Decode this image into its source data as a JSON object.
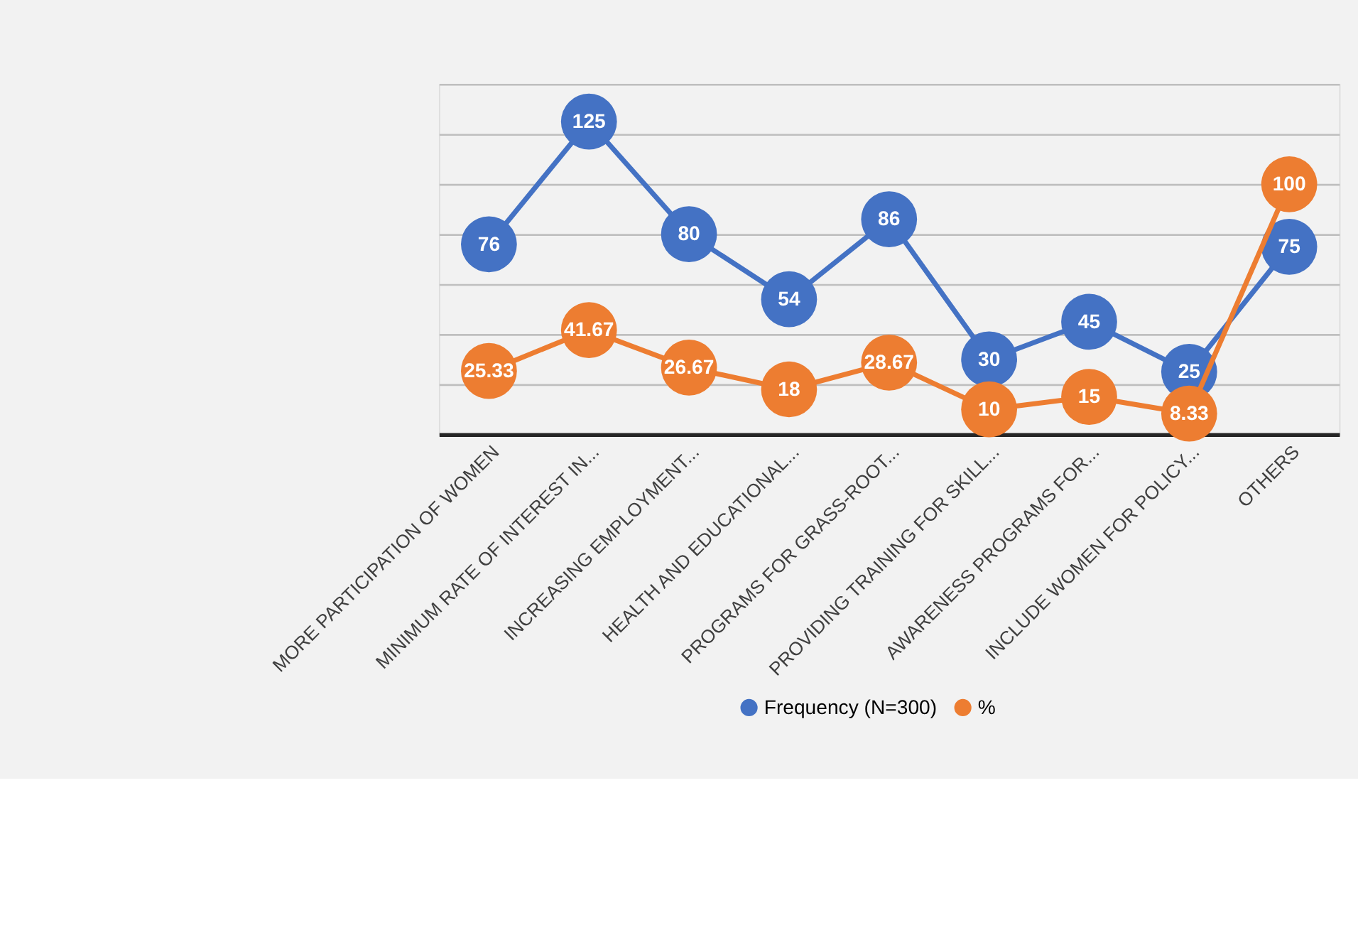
{
  "chart_data": {
    "type": "line",
    "categories": [
      "MORE PARTICIPATION OF WOMEN",
      "MINIMUM RATE OF INTEREST IN...",
      "INCREASING EMPLOYMENT...",
      "HEALTH AND EDUCATIONAL...",
      "PROGRAMS FOR GRASS-ROOT...",
      "PROVIDING TRAINING FOR SKILL...",
      "AWARENESS PROGRAMS FOR...",
      "INCLUDE WOMEN FOR POLICY...",
      "OTHERS"
    ],
    "series": [
      {
        "name": "Frequency (N=300)",
        "color": "#4472c4",
        "values": [
          76,
          125,
          80,
          54,
          86,
          30,
          45,
          25,
          75
        ]
      },
      {
        "name": "%",
        "color": "#ed7d31",
        "values": [
          25.33,
          41.67,
          26.67,
          18,
          28.67,
          10,
          15,
          8.33,
          100
        ]
      }
    ],
    "ylim": [
      0,
      140
    ],
    "grid": "y",
    "tick_labels": "x",
    "legend": "bottom",
    "marker": "circle",
    "line_style": "solid",
    "data_labels": true
  }
}
